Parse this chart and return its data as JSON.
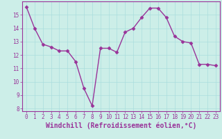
{
  "x": [
    0,
    1,
    2,
    3,
    4,
    5,
    6,
    7,
    8,
    9,
    10,
    11,
    12,
    13,
    14,
    15,
    16,
    17,
    18,
    19,
    20,
    21,
    22,
    23
  ],
  "y": [
    15.6,
    14.0,
    12.8,
    12.6,
    12.3,
    12.3,
    11.5,
    9.5,
    8.2,
    12.5,
    12.5,
    12.2,
    13.7,
    14.0,
    14.8,
    15.5,
    15.5,
    14.8,
    13.4,
    13.0,
    12.9,
    11.3,
    11.3,
    11.2
  ],
  "line_color": "#993399",
  "marker": "D",
  "markersize": 2.5,
  "linewidth": 1.0,
  "xlabel": "Windchill (Refroidissement éolien,°C)",
  "xlabel_fontsize": 7,
  "bg_color": "#cceee8",
  "grid_color": "#aadddd",
  "tick_color": "#993399",
  "label_color": "#993399",
  "xlim": [
    -0.5,
    23.5
  ],
  "ylim": [
    7.8,
    16.0
  ],
  "yticks": [
    8,
    9,
    10,
    11,
    12,
    13,
    14,
    15
  ],
  "xticks": [
    0,
    1,
    2,
    3,
    4,
    5,
    6,
    7,
    8,
    9,
    10,
    11,
    12,
    13,
    14,
    15,
    16,
    17,
    18,
    19,
    20,
    21,
    22,
    23
  ],
  "tick_fontsize": 5.5
}
